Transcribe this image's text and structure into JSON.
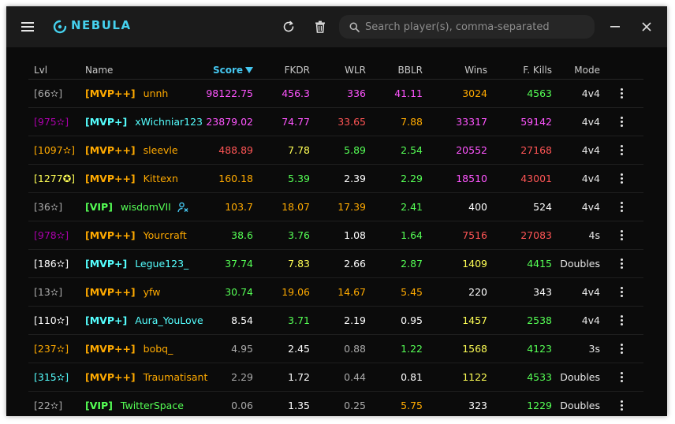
{
  "app": {
    "logo_text": "NEBULA",
    "accent": "#45d1ee",
    "icons": {
      "menu": "hamburger-menu-icon",
      "logo": "nebula-logo-icon",
      "refresh": "refresh-icon",
      "clear": "trash-icon",
      "search": "search-icon",
      "minimize": "minimize-icon",
      "close": "close-icon"
    }
  },
  "search": {
    "placeholder": "Search player(s), comma-separated",
    "value": ""
  },
  "table": {
    "headers": {
      "lvl": "Lvl",
      "name": "Name",
      "score": "Score",
      "fkdr": "FKDR",
      "wlr": "WLR",
      "bblr": "BBLR",
      "wins": "Wins",
      "fkills": "F. Kills",
      "mode": "Mode"
    },
    "sort": {
      "column": "Score",
      "direction": "descending"
    },
    "rows": [
      {
        "lvl": "[66✫]",
        "lvl_color": "#aaaaaa",
        "rank": "[MVP++]",
        "rank_color": "#ffaa00",
        "name": "unnh",
        "name_color": "#ffaa00",
        "nicked": false,
        "score": "98122.75",
        "score_color": "#ff55ff",
        "fkdr": "456.3",
        "fkdr_color": "#ff55ff",
        "wlr": "336",
        "wlr_color": "#ff55ff",
        "bblr": "41.11",
        "bblr_color": "#ff55ff",
        "wins": "3024",
        "wins_color": "#ffaa00",
        "fkills": "4563",
        "fkills_color": "#55ff55",
        "mode": "4v4"
      },
      {
        "lvl": "[975✫]",
        "lvl_color": "#aa00aa",
        "rank": "[MVP+]",
        "rank_color": "#55ffff",
        "name": "xWichniar123",
        "name_color": "#55ffff",
        "nicked": false,
        "score": "23879.02",
        "score_color": "#ff55ff",
        "fkdr": "74.77",
        "fkdr_color": "#ff55ff",
        "wlr": "33.65",
        "wlr_color": "#ff5555",
        "bblr": "7.88",
        "bblr_color": "#ffaa00",
        "wins": "33317",
        "wins_color": "#ff55ff",
        "fkills": "59142",
        "fkills_color": "#ff55ff",
        "mode": "4v4"
      },
      {
        "lvl": "[1097✫]",
        "lvl_color": "#ffaa00",
        "rank": "[MVP++]",
        "rank_color": "#ffaa00",
        "name": "sleevle",
        "name_color": "#ffaa00",
        "nicked": false,
        "score": "488.89",
        "score_color": "#ff5555",
        "fkdr": "7.78",
        "fkdr_color": "#ffff55",
        "wlr": "5.89",
        "wlr_color": "#55ff55",
        "bblr": "2.54",
        "bblr_color": "#55ff55",
        "wins": "20552",
        "wins_color": "#ff55ff",
        "fkills": "27168",
        "fkills_color": "#ff5555",
        "mode": "4v4"
      },
      {
        "lvl": "[1277✪]",
        "lvl_color": "#ffff55",
        "rank": "[MVP++]",
        "rank_color": "#ffaa00",
        "name": "Kittexn",
        "name_color": "#ffaa00",
        "nicked": false,
        "score": "160.18",
        "score_color": "#ffaa00",
        "fkdr": "5.39",
        "fkdr_color": "#55ff55",
        "wlr": "2.39",
        "wlr_color": "#ffffff",
        "bblr": "2.29",
        "bblr_color": "#55ff55",
        "wins": "18510",
        "wins_color": "#ff55ff",
        "fkills": "43001",
        "fkills_color": "#ff5555",
        "mode": "4v4"
      },
      {
        "lvl": "[36✫]",
        "lvl_color": "#aaaaaa",
        "rank": "[VIP]",
        "rank_color": "#55ff55",
        "name": "wisdomVII",
        "name_color": "#55ff55",
        "nicked": true,
        "score": "103.7",
        "score_color": "#ffaa00",
        "fkdr": "18.07",
        "fkdr_color": "#ffaa00",
        "wlr": "17.39",
        "wlr_color": "#ffaa00",
        "bblr": "2.41",
        "bblr_color": "#55ff55",
        "wins": "400",
        "wins_color": "#ffffff",
        "fkills": "524",
        "fkills_color": "#ffffff",
        "mode": "4v4"
      },
      {
        "lvl": "[978✫]",
        "lvl_color": "#aa00aa",
        "rank": "[MVP++]",
        "rank_color": "#ffaa00",
        "name": "Yourcraft",
        "name_color": "#ffaa00",
        "nicked": false,
        "score": "38.6",
        "score_color": "#55ff55",
        "fkdr": "3.76",
        "fkdr_color": "#55ff55",
        "wlr": "1.08",
        "wlr_color": "#ffffff",
        "bblr": "1.64",
        "bblr_color": "#55ff55",
        "wins": "7516",
        "wins_color": "#ff5555",
        "fkills": "27083",
        "fkills_color": "#ff5555",
        "mode": "4s"
      },
      {
        "lvl": "[186✫]",
        "lvl_color": "#ffffff",
        "rank": "[MVP+]",
        "rank_color": "#55ffff",
        "name": "Legue123_",
        "name_color": "#55ffff",
        "nicked": false,
        "score": "37.74",
        "score_color": "#55ff55",
        "fkdr": "7.83",
        "fkdr_color": "#ffff55",
        "wlr": "2.66",
        "wlr_color": "#ffffff",
        "bblr": "2.87",
        "bblr_color": "#55ff55",
        "wins": "1409",
        "wins_color": "#ffff55",
        "fkills": "4415",
        "fkills_color": "#55ff55",
        "mode": "Doubles"
      },
      {
        "lvl": "[13✫]",
        "lvl_color": "#aaaaaa",
        "rank": "[MVP++]",
        "rank_color": "#ffaa00",
        "name": "yfw",
        "name_color": "#ffaa00",
        "nicked": false,
        "score": "30.74",
        "score_color": "#55ff55",
        "fkdr": "19.06",
        "fkdr_color": "#ffaa00",
        "wlr": "14.67",
        "wlr_color": "#ffaa00",
        "bblr": "5.45",
        "bblr_color": "#ffaa00",
        "wins": "220",
        "wins_color": "#ffffff",
        "fkills": "343",
        "fkills_color": "#ffffff",
        "mode": "4v4"
      },
      {
        "lvl": "[110✫]",
        "lvl_color": "#ffffff",
        "rank": "[MVP+]",
        "rank_color": "#55ffff",
        "name": "Aura_YouLove",
        "name_color": "#55ffff",
        "nicked": false,
        "score": "8.54",
        "score_color": "#ffffff",
        "fkdr": "3.71",
        "fkdr_color": "#55ff55",
        "wlr": "2.19",
        "wlr_color": "#ffffff",
        "bblr": "0.95",
        "bblr_color": "#ffffff",
        "wins": "1457",
        "wins_color": "#ffff55",
        "fkills": "2538",
        "fkills_color": "#55ff55",
        "mode": "4v4"
      },
      {
        "lvl": "[237✫]",
        "lvl_color": "#ffaa00",
        "rank": "[MVP++]",
        "rank_color": "#ffaa00",
        "name": "bobq_",
        "name_color": "#ffaa00",
        "nicked": false,
        "score": "4.95",
        "score_color": "#aaaaaa",
        "fkdr": "2.45",
        "fkdr_color": "#ffffff",
        "wlr": "0.88",
        "wlr_color": "#aaaaaa",
        "bblr": "1.22",
        "bblr_color": "#55ff55",
        "wins": "1568",
        "wins_color": "#ffff55",
        "fkills": "4123",
        "fkills_color": "#55ff55",
        "mode": "3s"
      },
      {
        "lvl": "[315✫]",
        "lvl_color": "#55ffff",
        "rank": "[MVP++]",
        "rank_color": "#ffaa00",
        "name": "Traumatisant",
        "name_color": "#ffaa00",
        "nicked": false,
        "score": "2.29",
        "score_color": "#aaaaaa",
        "fkdr": "1.72",
        "fkdr_color": "#ffffff",
        "wlr": "0.44",
        "wlr_color": "#aaaaaa",
        "bblr": "0.81",
        "bblr_color": "#ffffff",
        "wins": "1122",
        "wins_color": "#ffff55",
        "fkills": "4533",
        "fkills_color": "#55ff55",
        "mode": "Doubles"
      },
      {
        "lvl": "[22✫]",
        "lvl_color": "#aaaaaa",
        "rank": "[VIP]",
        "rank_color": "#55ff55",
        "name": "TwitterSpace",
        "name_color": "#55ff55",
        "nicked": false,
        "score": "0.06",
        "score_color": "#aaaaaa",
        "fkdr": "1.35",
        "fkdr_color": "#ffffff",
        "wlr": "0.25",
        "wlr_color": "#aaaaaa",
        "bblr": "5.75",
        "bblr_color": "#ffaa00",
        "wins": "323",
        "wins_color": "#ffffff",
        "fkills": "1229",
        "fkills_color": "#55ff55",
        "mode": "Doubles"
      }
    ]
  }
}
